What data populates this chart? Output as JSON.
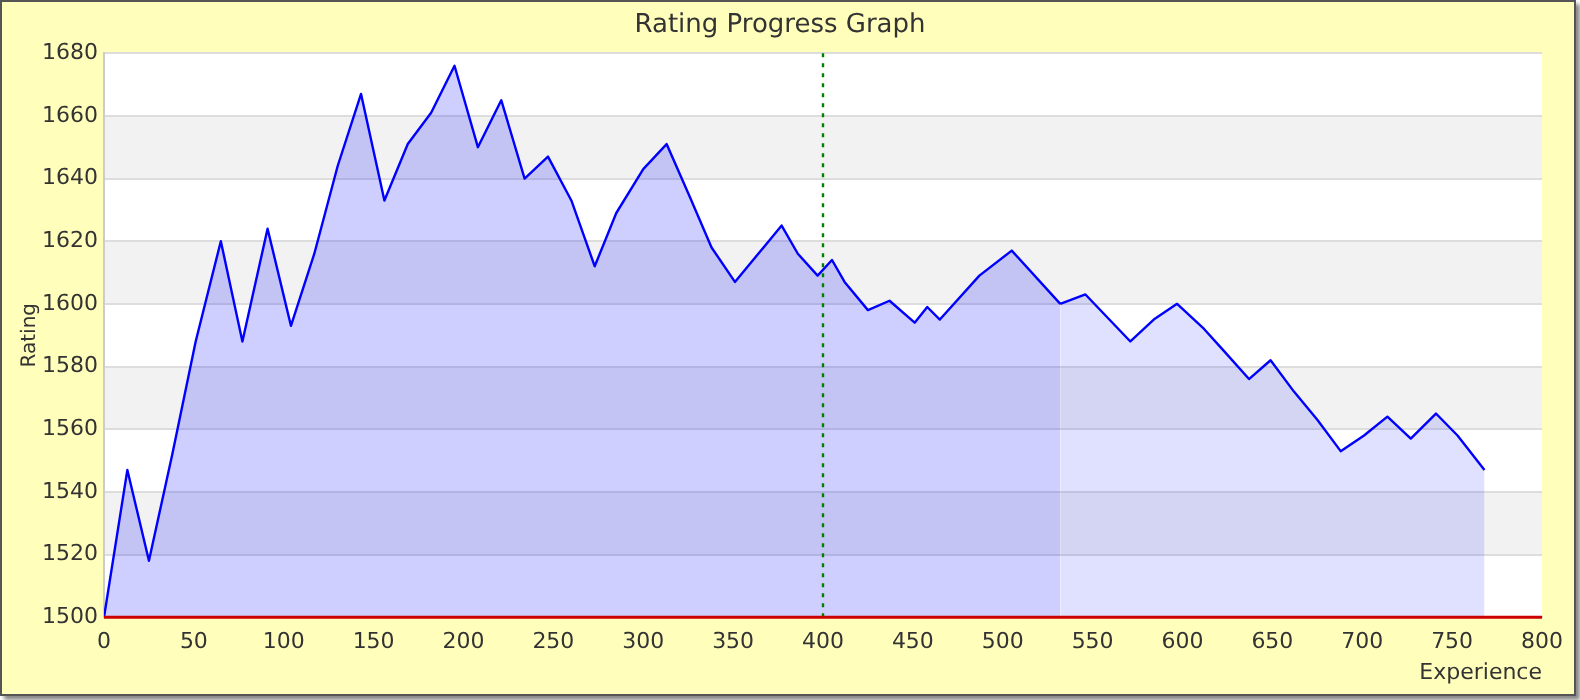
{
  "chart_data": {
    "type": "area",
    "title": "Rating Progress Graph",
    "xlabel": "Experience",
    "ylabel": "Rating",
    "series": [
      {
        "color": "#0000ff",
        "x": [
          0,
          13,
          25,
          38,
          51,
          65,
          77,
          91,
          104,
          117,
          130,
          143,
          156,
          169,
          182,
          195,
          208,
          221,
          234,
          247,
          260,
          273,
          285,
          300,
          313,
          326,
          338,
          351,
          364,
          377,
          386,
          397,
          405,
          412,
          425,
          437,
          451,
          458,
          465,
          487,
          505,
          532
        ],
        "values": [
          1500,
          1547,
          1518,
          1552,
          1588,
          1620,
          1588,
          1624,
          1593,
          1616,
          1644,
          1667,
          1633,
          1651,
          1661,
          1676,
          1650,
          1665,
          1640,
          1647,
          1633,
          1612,
          1629,
          1643,
          1651,
          1634,
          1618,
          1607,
          1616,
          1625,
          1616,
          1609,
          1614,
          1607,
          1598,
          1601,
          1594,
          1599,
          1595,
          1609,
          1617,
          1600
        ]
      },
      {
        "color": "#0000ff",
        "x": [
          532,
          546,
          571,
          584,
          597,
          612,
          623,
          637,
          649,
          662,
          675,
          688,
          701,
          714,
          727,
          741,
          753,
          768
        ],
        "values": [
          1600,
          1603,
          1588,
          1595,
          1600,
          1592,
          1585,
          1576,
          1582,
          1572,
          1563,
          1553,
          1558,
          1564,
          1557,
          1565,
          1558,
          1547
        ]
      }
    ],
    "xlim": [
      0,
      800
    ],
    "xticks": [
      0,
      50,
      100,
      150,
      200,
      250,
      300,
      350,
      400,
      450,
      500,
      550,
      600,
      650,
      700,
      750,
      800
    ],
    "ylim": [
      1500,
      1680
    ],
    "yticks": [
      1500,
      1520,
      1540,
      1560,
      1580,
      1600,
      1620,
      1640,
      1660,
      1680
    ],
    "ref_lines": [
      {
        "axis": "x",
        "value": 400,
        "color": "#008000",
        "line_style": "dotted"
      }
    ],
    "grid": "y",
    "legend": false,
    "marker": "none"
  }
}
